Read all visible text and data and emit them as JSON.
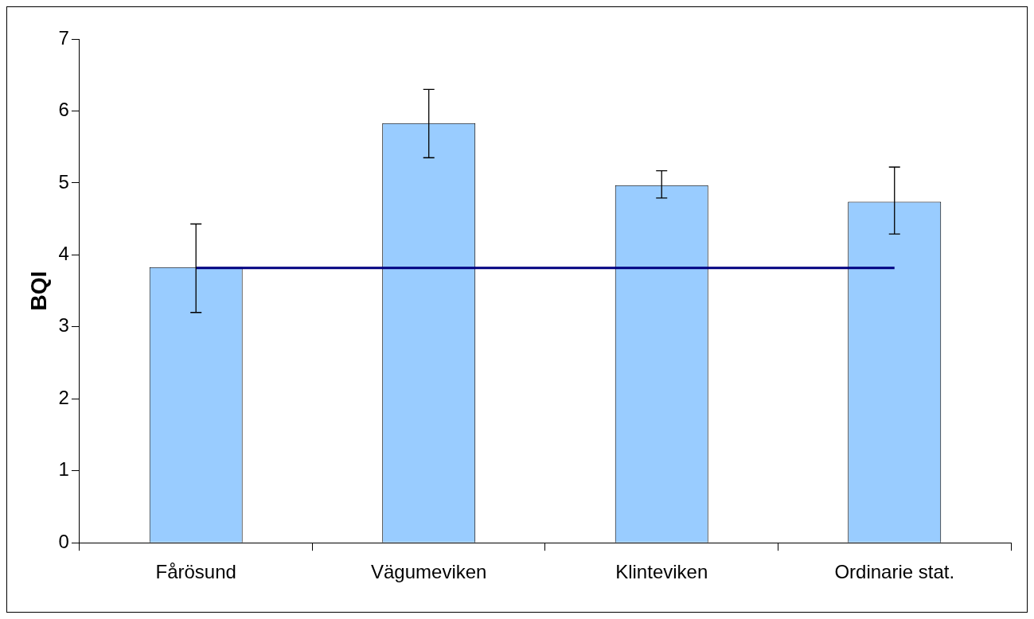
{
  "chart_data": {
    "type": "bar",
    "ylabel": "BQI",
    "categories": [
      "Fårösund",
      "Vägumeviken",
      "Klinteviken",
      "Ordinarie stat."
    ],
    "series": [
      {
        "color": "#99ccff",
        "values": [
          3.83,
          5.83,
          4.97,
          4.74
        ],
        "errors": [
          [
            3.2,
            4.43
          ],
          [
            5.35,
            6.3
          ],
          [
            4.79,
            5.17
          ],
          [
            4.29,
            5.22
          ]
        ]
      },
      {
        "type": "line",
        "color": "#000080",
        "values": [
          3.82,
          3.82,
          3.82,
          3.82
        ]
      }
    ],
    "ylim": [
      0,
      7
    ],
    "yticks": [
      0,
      1,
      2,
      3,
      4,
      5,
      6,
      7
    ]
  }
}
